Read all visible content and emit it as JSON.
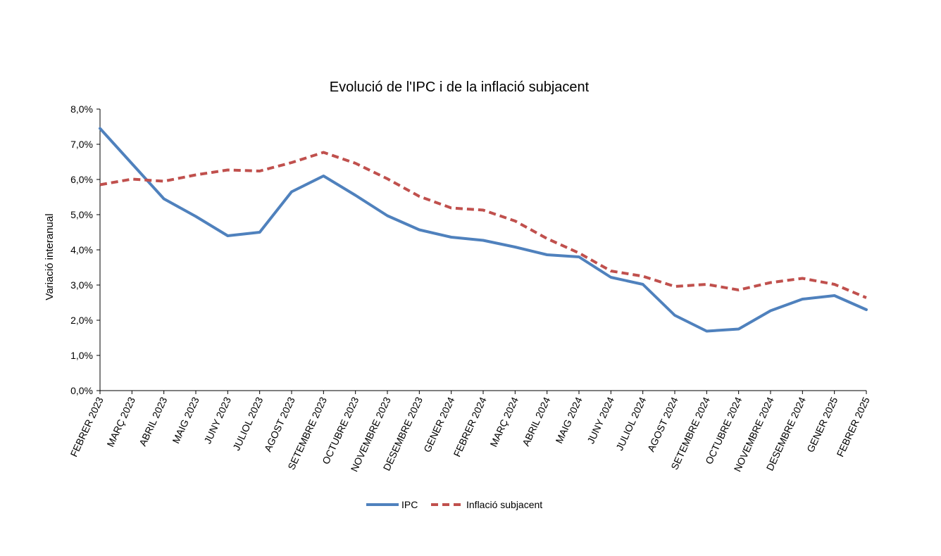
{
  "chart_data": {
    "type": "line",
    "title": "Evolució de l'IPC i de la inflació subjacent",
    "xlabel": "",
    "ylabel": "Variació interanual",
    "ylim": [
      0,
      8
    ],
    "y_ticks": [
      "0,0%",
      "1,0%",
      "2,0%",
      "3,0%",
      "4,0%",
      "5,0%",
      "6,0%",
      "7,0%",
      "8,0%"
    ],
    "grid": false,
    "legend_position": "bottom",
    "categories": [
      "FEBRER 2023",
      "MARÇ 2023",
      "ABRIL 2023",
      "MAIG 2023",
      "JUNY 2023",
      "JULIOL 2023",
      "AGOST 2023",
      "SETEMBRE 2023",
      "OCTUBRE 2023",
      "NOVEMBRE 2023",
      "DESEMBRE 2023",
      "GENER 2024",
      "FEBRER 2024",
      "MARÇ 2024",
      "ABRIL 2024",
      "MAIG 2024",
      "JUNY 2024",
      "JULIOL 2024",
      "AGOST 2024",
      "SETEMBRE 2024",
      "OCTUBRE 2024",
      "NOVEMBRE 2024",
      "DESEMBRE 2024",
      "GENER 2025",
      "FEBRER 2025"
    ],
    "series": [
      {
        "name": "IPC",
        "color": "#4F81BD",
        "style": "solid",
        "values": [
          7.45,
          6.45,
          5.45,
          4.95,
          4.4,
          4.5,
          5.65,
          6.1,
          5.55,
          4.97,
          4.57,
          4.36,
          4.27,
          4.08,
          3.86,
          3.8,
          3.22,
          3.02,
          2.14,
          1.69,
          1.75,
          2.27,
          2.6,
          2.7,
          2.3
        ]
      },
      {
        "name": "Inflació subjacent",
        "color": "#C0504D",
        "style": "dashed",
        "values": [
          5.85,
          6.01,
          5.95,
          6.13,
          6.27,
          6.24,
          6.48,
          6.77,
          6.46,
          6.02,
          5.52,
          5.19,
          5.13,
          4.82,
          4.32,
          3.91,
          3.4,
          3.25,
          2.96,
          3.02,
          2.86,
          3.07,
          3.19,
          3.02,
          2.64
        ]
      }
    ]
  }
}
